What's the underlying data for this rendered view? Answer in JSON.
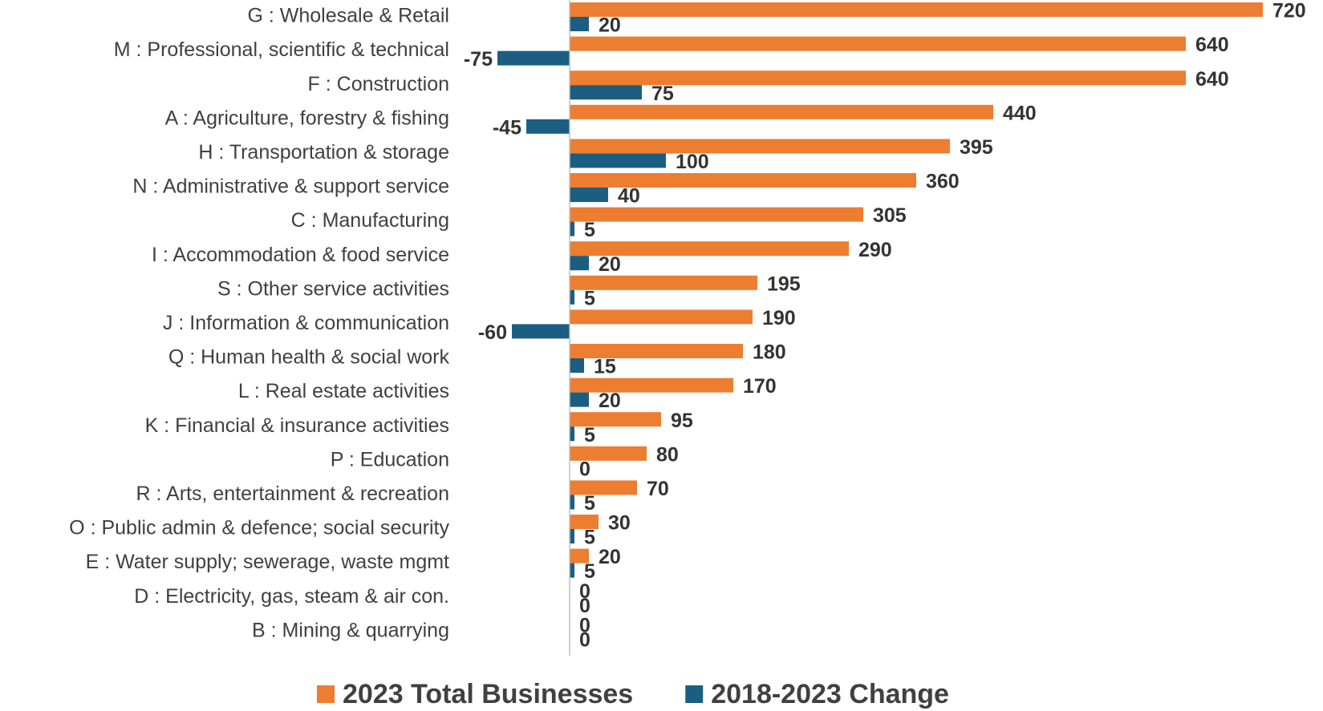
{
  "chart_data": {
    "type": "bar",
    "orientation": "horizontal",
    "categories": [
      "G : Wholesale & Retail",
      "M : Professional, scientific & technical",
      "F : Construction",
      "A : Agriculture, forestry & fishing",
      "H : Transportation & storage",
      "N : Administrative & support service",
      "C : Manufacturing",
      "I : Accommodation & food service",
      "S : Other service activities",
      "J : Information & communication",
      "Q : Human health & social work",
      "L : Real estate activities",
      "K : Financial & insurance activities",
      "P : Education",
      "R : Arts, entertainment & recreation",
      "O : Public admin & defence; social security",
      "E : Water supply; sewerage, waste mgmt",
      "D : Electricity, gas, steam & air con.",
      "B : Mining & quarrying"
    ],
    "series": [
      {
        "name": "2023 Total Businesses",
        "color": "#ED7D31",
        "values": [
          720,
          640,
          640,
          440,
          395,
          360,
          305,
          290,
          195,
          190,
          180,
          170,
          95,
          80,
          70,
          30,
          20,
          0,
          0
        ]
      },
      {
        "name": "2018-2023 Change",
        "color": "#1B5E82",
        "values": [
          20,
          -75,
          75,
          -45,
          100,
          40,
          5,
          20,
          5,
          -60,
          15,
          20,
          5,
          0,
          5,
          5,
          5,
          0,
          0
        ]
      }
    ],
    "xlim": [
      -100,
      750
    ],
    "legend": "bottom"
  }
}
